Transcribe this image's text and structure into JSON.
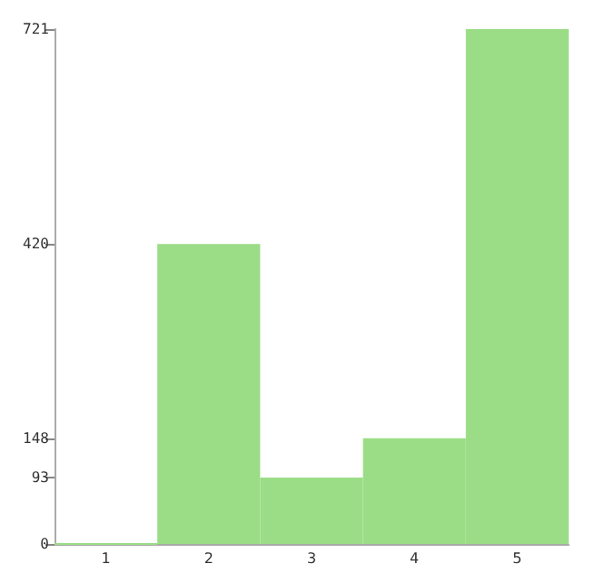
{
  "chart_data": {
    "type": "bar",
    "categories": [
      "1",
      "2",
      "3",
      "4",
      "5"
    ],
    "values": [
      0,
      420,
      93,
      148,
      721
    ],
    "color": "#9bdd86",
    "ylim": [
      0,
      721
    ],
    "yticks": [
      0,
      93,
      148,
      420,
      721
    ],
    "grid": false
  }
}
